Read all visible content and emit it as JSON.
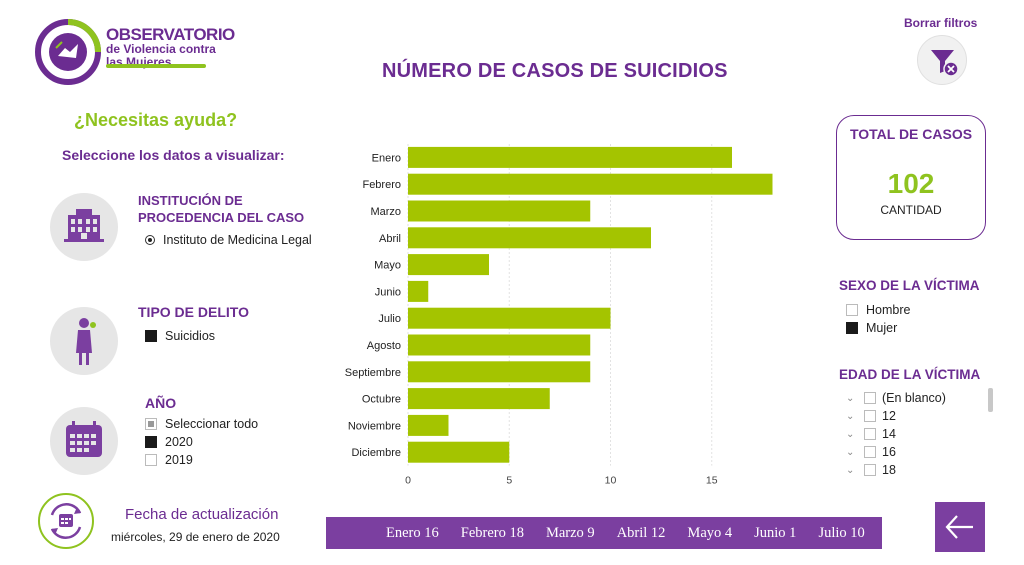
{
  "logo": {
    "line1": "OBSERVATORIO",
    "line2": "de Violencia contra",
    "line3": "las Mujeres"
  },
  "page_title": "NÚMERO DE CASOS DE SUICIDIOS",
  "clear_filters": "Borrar filtros",
  "help": "¿Necesitas ayuda?",
  "select_data": "Seleccione los datos a visualizar:",
  "institution": {
    "title_l1": "INSTITUCIÓN DE",
    "title_l2": "PROCEDENCIA DEL CASO",
    "option": "Instituto de Medicina Legal"
  },
  "crime_type": {
    "title": "TIPO DE DELITO",
    "option": "Suicidios"
  },
  "year": {
    "title": "AÑO",
    "options": [
      "Seleccionar todo",
      "2020",
      "2019"
    ]
  },
  "total": {
    "title": "TOTAL DE CASOS",
    "value": "102",
    "label": "CANTIDAD"
  },
  "sex": {
    "title": "SEXO DE LA VÍCTIMA",
    "options": [
      "Hombre",
      "Mujer"
    ]
  },
  "age": {
    "title": "EDAD DE LA VÍCTIMA",
    "options": [
      "(En blanco)",
      "12",
      "14",
      "16",
      "18"
    ]
  },
  "update": {
    "title": "Fecha de actualización",
    "date": "miércoles, 29 de enero de 2020"
  },
  "ticker": [
    "Enero 16",
    "Febrero 18",
    "Marzo 9",
    "Abril 12",
    "Mayo 4",
    "Junio 1",
    "Julio 10"
  ],
  "colors": {
    "purple": "#6b2c91",
    "green": "#8fc31f",
    "bar": "#a4c400"
  },
  "chart_data": {
    "type": "bar",
    "orientation": "horizontal",
    "categories": [
      "Enero",
      "Febrero",
      "Marzo",
      "Abril",
      "Mayo",
      "Junio",
      "Julio",
      "Agosto",
      "Septiembre",
      "Octubre",
      "Noviembre",
      "Diciembre"
    ],
    "values": [
      16,
      18,
      9,
      12,
      4,
      1,
      10,
      9,
      9,
      7,
      2,
      5
    ],
    "xlim": [
      0,
      20
    ],
    "xticks": [
      0,
      5,
      10,
      15
    ],
    "grid": true,
    "title": "",
    "xlabel": "",
    "ylabel": ""
  }
}
